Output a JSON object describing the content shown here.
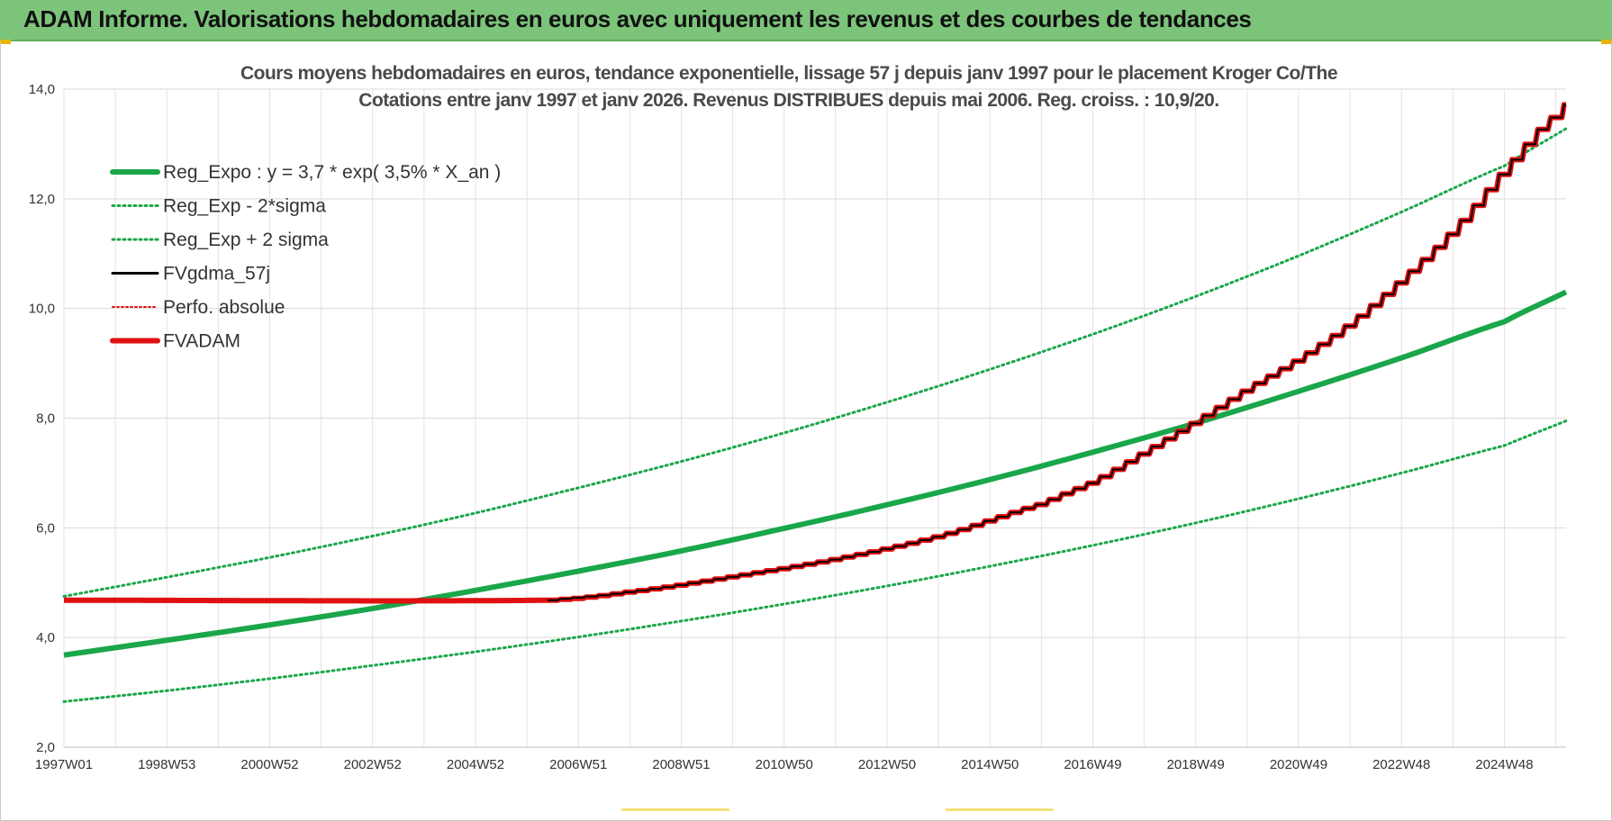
{
  "header": {
    "title": "ADAM Informe. Valorisations hebdomadaires en euros avec uniquement les revenus et des courbes de tendances"
  },
  "colors": {
    "header_bg": "#7cc47a",
    "reg_expo": "#1aa64a",
    "sigma": "#1aa64a",
    "fvgdma": "#000000",
    "perfo": "#e01010",
    "fvadam": "#e01010"
  },
  "chart_data": {
    "type": "line",
    "title": "Cours moyens hebdomadaires en euros, tendance exponentielle, lissage 57 j depuis janv 1997 pour le placement Kroger Co/The",
    "subtitle": "Cotations entre janv 1997 et janv 2026. Revenus DISTRIBUES depuis mai 2006.  Reg. croiss. : 10,9/20.",
    "xlabel": "",
    "ylabel": "",
    "ylim": [
      2.0,
      14.0
    ],
    "yticks": [
      "2,0",
      "4,0",
      "6,0",
      "8,0",
      "10,0",
      "12,0",
      "14,0"
    ],
    "ytick_values": [
      2,
      4,
      6,
      8,
      10,
      12,
      14
    ],
    "xlim": [
      1997.0,
      2026.2
    ],
    "xticks": [
      "1997W01",
      "1998W53",
      "2000W52",
      "2002W52",
      "2004W52",
      "2006W51",
      "2008W51",
      "2010W50",
      "2012W50",
      "2014W50",
      "2016W49",
      "2018W49",
      "2020W49",
      "2022W48",
      "2024W48"
    ],
    "xtick_values": [
      1997.0,
      1999.0,
      2001.0,
      2003.0,
      2005.0,
      2007.0,
      2009.0,
      2011.0,
      2013.0,
      2015.0,
      2017.0,
      2019.0,
      2021.0,
      2023.0,
      2025.0
    ],
    "grid": true,
    "legend_position": "top-left",
    "legend": [
      {
        "key": "reg_expo",
        "label": "Reg_Expo : y = 3,7 * exp( 3,5% *  X_an )",
        "style": "solid-thick"
      },
      {
        "key": "reg_minus",
        "label": "Reg_Exp - 2*sigma",
        "style": "dotted"
      },
      {
        "key": "reg_plus",
        "label": "Reg_Exp + 2 sigma",
        "style": "dotted"
      },
      {
        "key": "fvgdma",
        "label": "FVgdma_57j",
        "style": "solid"
      },
      {
        "key": "perfo",
        "label": "Perfo. absolue",
        "style": "dotted"
      },
      {
        "key": "fvadam",
        "label": "FVADAM",
        "style": "solid-thick"
      }
    ],
    "series": [
      {
        "name": "Reg_Expo",
        "key": "reg_expo",
        "x": [
          1997,
          1999,
          2001,
          2003,
          2005,
          2007,
          2009,
          2011,
          2013,
          2015,
          2017,
          2019,
          2021,
          2023,
          2025,
          2026.2
        ],
        "y": [
          3.68,
          3.95,
          4.23,
          4.53,
          4.86,
          5.21,
          5.58,
          5.99,
          6.42,
          6.88,
          7.38,
          7.91,
          8.49,
          9.1,
          9.76,
          10.3
        ]
      },
      {
        "name": "Reg_Exp - 2*sigma",
        "key": "reg_minus",
        "x": [
          1997,
          1999,
          2001,
          2003,
          2005,
          2007,
          2009,
          2011,
          2013,
          2015,
          2017,
          2019,
          2021,
          2023,
          2025,
          2026.2
        ],
        "y": [
          2.83,
          3.03,
          3.25,
          3.49,
          3.74,
          4.01,
          4.3,
          4.61,
          4.94,
          5.3,
          5.68,
          6.09,
          6.53,
          7.0,
          7.5,
          7.95
        ]
      },
      {
        "name": "Reg_Exp + 2 sigma",
        "key": "reg_plus",
        "x": [
          1997,
          1999,
          2001,
          2003,
          2005,
          2007,
          2009,
          2011,
          2013,
          2015,
          2017,
          2019,
          2021,
          2023,
          2025,
          2026.2
        ],
        "y": [
          4.75,
          5.1,
          5.46,
          5.85,
          6.27,
          6.73,
          7.21,
          7.73,
          8.29,
          8.89,
          9.53,
          10.22,
          10.96,
          11.76,
          12.6,
          13.28
        ]
      },
      {
        "name": "FVgdma_57j",
        "key": "fvgdma",
        "x": [
          2006.4,
          2008,
          2010,
          2012,
          2014,
          2016,
          2017,
          2018,
          2019,
          2020,
          2021,
          2022,
          2023,
          2024,
          2025,
          2026,
          2026.2
        ],
        "y": [
          4.68,
          4.84,
          5.12,
          5.44,
          5.86,
          6.45,
          6.86,
          7.4,
          7.96,
          8.55,
          9.1,
          9.75,
          10.55,
          11.45,
          12.55,
          13.55,
          13.74
        ]
      },
      {
        "name": "FVADAM",
        "key": "fvadam",
        "x": [
          1997,
          2006.4,
          2008,
          2010,
          2012,
          2014,
          2016,
          2017,
          2018,
          2019,
          2020,
          2021,
          2022,
          2023,
          2024,
          2025,
          2026,
          2026.2
        ],
        "y": [
          4.68,
          4.68,
          4.84,
          5.12,
          5.44,
          5.86,
          6.45,
          6.86,
          7.4,
          7.96,
          8.55,
          9.1,
          9.75,
          10.55,
          11.45,
          12.55,
          13.55,
          13.74
        ]
      }
    ]
  }
}
